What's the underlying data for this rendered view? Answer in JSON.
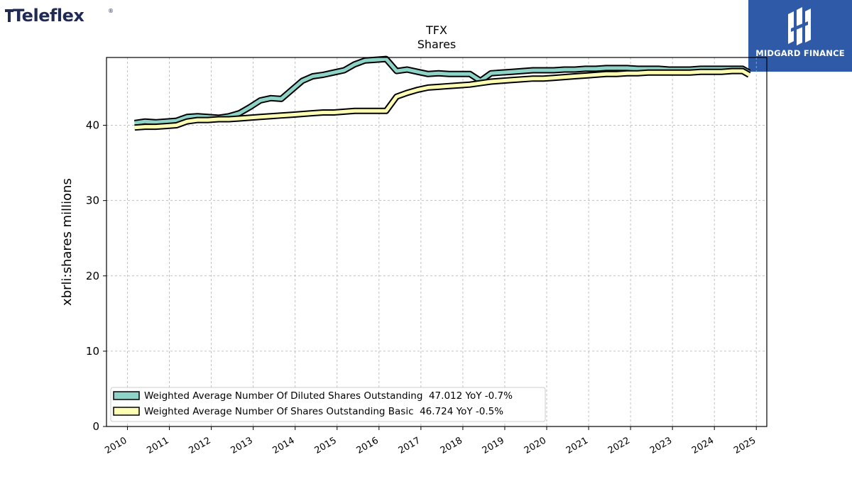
{
  "brand": {
    "logo_text": "Teleflex",
    "registered_mark": "®",
    "logo_icon": "teleflex-logo-icon"
  },
  "badge": {
    "text": "MIDGARD FINANCE",
    "icon": "midgard-monogram-icon",
    "color": "#2f5aa8"
  },
  "chart_data": {
    "type": "line",
    "title": "TFX",
    "subtitle": "Shares",
    "xlabel": "",
    "ylabel": "xbrli:shares millions",
    "xlim": [
      2009.5,
      2025.25
    ],
    "ylim": [
      0,
      49
    ],
    "x_ticks": [
      2010,
      2011,
      2012,
      2013,
      2014,
      2015,
      2016,
      2017,
      2018,
      2019,
      2020,
      2021,
      2022,
      2023,
      2024,
      2025
    ],
    "y_ticks": [
      0,
      10,
      20,
      30,
      40
    ],
    "grid": true,
    "legend_position": "lower-left",
    "series": [
      {
        "name": "Weighted Average Number Of Diluted Shares Outstanding  47.012 YoY -0.7%",
        "color": "#8dd3c7",
        "x": [
          2010.17,
          2010.42,
          2010.67,
          2010.92,
          2011.17,
          2011.42,
          2011.67,
          2011.92,
          2012.17,
          2012.42,
          2012.67,
          2012.92,
          2013.17,
          2013.42,
          2013.67,
          2013.92,
          2014.17,
          2014.42,
          2014.67,
          2014.92,
          2015.17,
          2015.42,
          2015.67,
          2015.92,
          2016.17,
          2016.42,
          2016.67,
          2016.92,
          2017.17,
          2017.42,
          2017.67,
          2017.92,
          2018.17,
          2018.42,
          2018.67,
          2018.92,
          2019.17,
          2019.42,
          2019.67,
          2019.92,
          2020.17,
          2020.42,
          2020.67,
          2020.92,
          2021.17,
          2021.42,
          2021.67,
          2021.92,
          2022.17,
          2022.42,
          2022.67,
          2022.92,
          2023.17,
          2023.42,
          2023.67,
          2023.92,
          2024.17,
          2024.42,
          2024.67,
          2024.83
        ],
        "values": [
          40.3,
          40.5,
          40.4,
          40.5,
          40.6,
          41.1,
          41.2,
          41.1,
          41.0,
          41.2,
          41.6,
          42.4,
          43.3,
          43.6,
          43.5,
          44.7,
          45.9,
          46.5,
          46.7,
          47.0,
          47.3,
          48.1,
          48.6,
          48.7,
          48.8,
          47.2,
          47.4,
          47.1,
          46.8,
          46.9,
          46.8,
          46.8,
          46.8,
          45.9,
          46.9,
          47.0,
          47.1,
          47.2,
          47.3,
          47.3,
          47.3,
          47.4,
          47.4,
          47.5,
          47.5,
          47.6,
          47.6,
          47.6,
          47.5,
          47.5,
          47.5,
          47.4,
          47.4,
          47.4,
          47.5,
          47.5,
          47.5,
          47.5,
          47.5,
          47.0
        ]
      },
      {
        "name": "Weighted Average Number Of Shares Outstanding Basic  46.724 YoY -0.5%",
        "color": "#ffffb3",
        "x": [
          2010.17,
          2010.42,
          2010.67,
          2010.92,
          2011.17,
          2011.42,
          2011.67,
          2011.92,
          2012.17,
          2012.42,
          2012.67,
          2012.92,
          2013.17,
          2013.42,
          2013.67,
          2013.92,
          2014.17,
          2014.42,
          2014.67,
          2014.92,
          2015.17,
          2015.42,
          2015.67,
          2015.92,
          2016.17,
          2016.42,
          2016.67,
          2016.92,
          2017.17,
          2017.42,
          2017.67,
          2017.92,
          2018.17,
          2018.42,
          2018.67,
          2018.92,
          2019.17,
          2019.42,
          2019.67,
          2019.92,
          2020.17,
          2020.42,
          2020.67,
          2020.92,
          2021.17,
          2021.42,
          2021.67,
          2021.92,
          2022.17,
          2022.42,
          2022.67,
          2022.92,
          2023.17,
          2023.42,
          2023.67,
          2023.92,
          2024.17,
          2024.42,
          2024.67,
          2024.83
        ],
        "values": [
          39.7,
          39.8,
          39.8,
          39.9,
          40.0,
          40.5,
          40.7,
          40.7,
          40.8,
          40.8,
          40.9,
          41.0,
          41.1,
          41.2,
          41.3,
          41.4,
          41.5,
          41.6,
          41.7,
          41.7,
          41.8,
          41.9,
          41.9,
          41.9,
          41.9,
          43.8,
          44.3,
          44.7,
          45.0,
          45.1,
          45.2,
          45.3,
          45.4,
          45.6,
          45.8,
          45.9,
          46.0,
          46.1,
          46.2,
          46.2,
          46.3,
          46.4,
          46.5,
          46.6,
          46.7,
          46.8,
          46.8,
          46.9,
          46.9,
          47.0,
          47.0,
          47.0,
          47.0,
          47.0,
          47.1,
          47.1,
          47.1,
          47.2,
          47.2,
          46.7
        ]
      }
    ]
  }
}
